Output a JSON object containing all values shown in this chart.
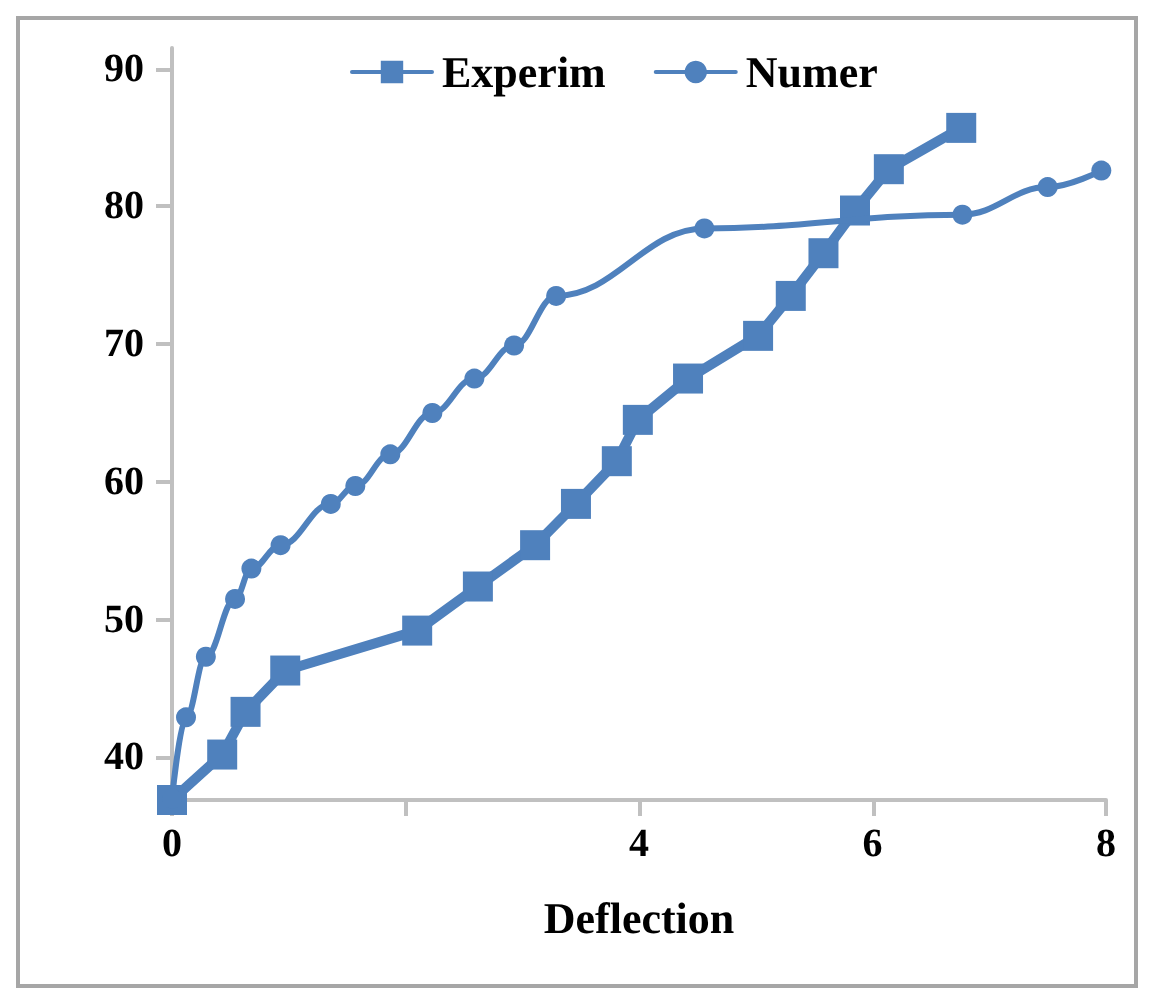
{
  "chart_data": {
    "type": "line",
    "xlabel": "Deflection",
    "xlim": [
      0,
      8
    ],
    "xticks": [
      0,
      {
        "value": 2,
        "label": null
      },
      4,
      6,
      8
    ],
    "ylim": [
      36.9,
      91.5
    ],
    "yticks": [
      40,
      50,
      60,
      70,
      80,
      90
    ],
    "grid": false,
    "legend": "top",
    "line_style": "solid",
    "series": [
      {
        "name": "Experim",
        "color": "#4f81bd",
        "marker": "square",
        "x": [
          0,
          0.43,
          0.63,
          0.97,
          2.1,
          2.62,
          3.11,
          3.46,
          3.81,
          3.99,
          4.42,
          5.02,
          5.3,
          5.58,
          5.85,
          6.14,
          6.76
        ],
        "values": [
          36.9,
          40.2,
          43.3,
          46.3,
          49.2,
          52.4,
          55.4,
          58.4,
          61.5,
          64.5,
          67.5,
          70.6,
          73.5,
          76.6,
          79.7,
          82.7,
          85.7
        ]
      },
      {
        "name": "Numer",
        "color": "#4f81bd",
        "marker": "circle",
        "x": [
          0,
          0.12,
          0.29,
          0.54,
          0.68,
          0.93,
          1.36,
          1.57,
          1.87,
          2.23,
          2.59,
          2.93,
          3.29,
          4.56,
          6.77,
          7.5,
          7.96
        ],
        "values": [
          37,
          42.9,
          47.3,
          51.5,
          53.7,
          55.4,
          58.4,
          59.7,
          62,
          65,
          67.5,
          69.9,
          73.5,
          78.4,
          79.4,
          81.4,
          82.6
        ]
      }
    ]
  }
}
